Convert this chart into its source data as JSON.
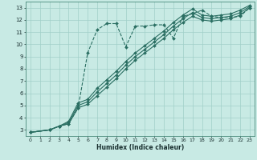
{
  "xlabel": "Humidex (Indice chaleur)",
  "background_color": "#c8eae4",
  "grid_color": "#a0cfc8",
  "line_color": "#2a6e62",
  "xlim": [
    -0.5,
    23.5
  ],
  "ylim": [
    2.5,
    13.5
  ],
  "xticks": [
    0,
    1,
    2,
    3,
    4,
    5,
    6,
    7,
    8,
    9,
    10,
    11,
    12,
    13,
    14,
    15,
    16,
    17,
    18,
    19,
    20,
    21,
    22,
    23
  ],
  "yticks": [
    3,
    4,
    5,
    6,
    7,
    8,
    9,
    10,
    11,
    12,
    13
  ],
  "curves": [
    {
      "style": "--",
      "x": [
        0,
        2,
        3,
        4,
        5,
        6,
        7,
        8,
        9,
        10,
        11,
        12,
        13,
        14,
        15,
        16,
        17,
        18,
        19,
        20,
        21,
        22,
        23
      ],
      "y": [
        2.8,
        3.0,
        3.3,
        3.5,
        4.8,
        9.3,
        11.2,
        11.7,
        11.7,
        9.8,
        11.5,
        11.5,
        11.6,
        11.6,
        10.5,
        12.3,
        12.5,
        12.8,
        12.3,
        12.2,
        12.2,
        12.3,
        13.0
      ]
    },
    {
      "style": "-",
      "x": [
        0,
        2,
        3,
        4,
        5,
        6,
        7,
        8,
        9,
        10,
        11,
        12,
        13,
        14,
        15,
        16,
        17,
        18,
        19,
        20,
        21,
        22,
        23
      ],
      "y": [
        2.8,
        3.0,
        3.3,
        3.5,
        4.8,
        5.1,
        5.8,
        6.5,
        7.2,
        8.0,
        8.7,
        9.3,
        9.9,
        10.5,
        11.2,
        11.8,
        12.3,
        12.0,
        11.9,
        12.0,
        12.1,
        12.4,
        13.0
      ]
    },
    {
      "style": "-",
      "x": [
        0,
        2,
        3,
        4,
        5,
        6,
        7,
        8,
        9,
        10,
        11,
        12,
        13,
        14,
        15,
        16,
        17,
        18,
        19,
        20,
        21,
        22,
        23
      ],
      "y": [
        2.8,
        3.0,
        3.3,
        3.6,
        5.0,
        5.3,
        6.1,
        6.8,
        7.5,
        8.3,
        9.0,
        9.6,
        10.2,
        10.8,
        11.5,
        12.1,
        12.6,
        12.2,
        12.1,
        12.2,
        12.3,
        12.6,
        13.1
      ]
    },
    {
      "style": "-",
      "x": [
        0,
        2,
        3,
        4,
        5,
        6,
        7,
        8,
        9,
        10,
        11,
        12,
        13,
        14,
        15,
        16,
        17,
        18,
        19,
        20,
        21,
        22,
        23
      ],
      "y": [
        2.8,
        3.0,
        3.3,
        3.7,
        5.2,
        5.5,
        6.4,
        7.1,
        7.8,
        8.6,
        9.3,
        9.9,
        10.5,
        11.1,
        11.8,
        12.4,
        12.9,
        12.4,
        12.3,
        12.4,
        12.5,
        12.8,
        13.2
      ]
    }
  ]
}
